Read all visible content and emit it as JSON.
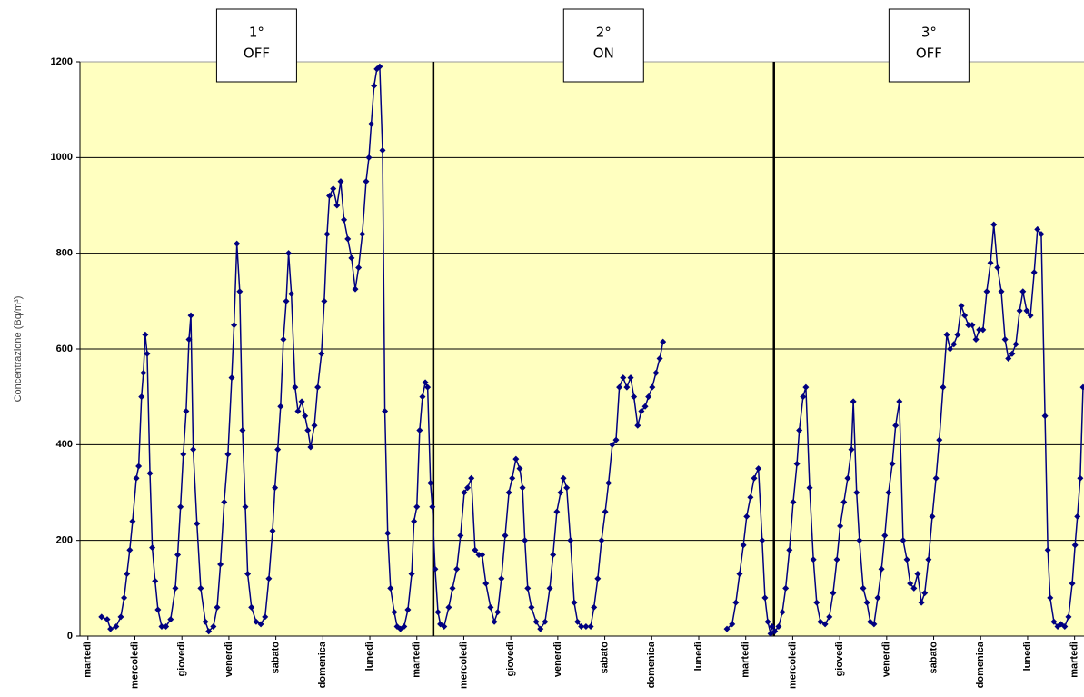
{
  "chart_data": {
    "type": "line",
    "y_label": "Concentrazione (Bq/m³)",
    "color": "#000080",
    "background": "#ffffc0",
    "grid": true,
    "ylim": [
      0,
      1200
    ],
    "yticks": [
      0,
      200,
      400,
      600,
      800,
      1000,
      1200
    ],
    "xlim": [
      -0.17,
      21.2
    ],
    "xticks": [
      {
        "value": 0,
        "label": "martedì"
      },
      {
        "value": 1,
        "label": "mercoledì"
      },
      {
        "value": 2,
        "label": "giovedì"
      },
      {
        "value": 3,
        "label": "venerdì"
      },
      {
        "value": 4,
        "label": "sabato"
      },
      {
        "value": 5,
        "label": "domenica"
      },
      {
        "value": 6,
        "label": "lunedì"
      },
      {
        "value": 7,
        "label": "martedì"
      },
      {
        "value": 8,
        "label": "mercoledì"
      },
      {
        "value": 9,
        "label": "giovedì"
      },
      {
        "value": 10,
        "label": "venerdì"
      },
      {
        "value": 11,
        "label": "sabato"
      },
      {
        "value": 12,
        "label": "domenica"
      },
      {
        "value": 13,
        "label": "lunedì"
      },
      {
        "value": 14,
        "label": "martedì"
      },
      {
        "value": 15,
        "label": "mercoledì"
      },
      {
        "value": 16,
        "label": "giovedì"
      },
      {
        "value": 17,
        "label": "venerdì"
      },
      {
        "value": 18,
        "label": "sabato"
      },
      {
        "value": 19,
        "label": "domenica"
      },
      {
        "value": 20,
        "label": "lunedì"
      },
      {
        "value": 21,
        "label": "martedì"
      }
    ],
    "phase_dividers": [
      7.35,
      14.6
    ],
    "annotations": [
      [
        "1°",
        "OFF"
      ],
      [
        "2°",
        "ON"
      ],
      [
        "3°",
        "OFF"
      ]
    ],
    "x": [
      0.29,
      0.41,
      0.48,
      0.6,
      0.7,
      0.77,
      0.83,
      0.89,
      0.95,
      1.03,
      1.08,
      1.14,
      1.18,
      1.22,
      1.26,
      1.32,
      1.37,
      1.43,
      1.49,
      1.57,
      1.66,
      1.76,
      1.86,
      1.91,
      1.97,
      2.03,
      2.09,
      2.15,
      2.19,
      2.24,
      2.32,
      2.4,
      2.5,
      2.57,
      2.67,
      2.75,
      2.82,
      2.9,
      2.98,
      3.06,
      3.11,
      3.17,
      3.23,
      3.29,
      3.35,
      3.4,
      3.48,
      3.58,
      3.68,
      3.77,
      3.85,
      3.93,
      3.98,
      4.04,
      4.1,
      4.16,
      4.22,
      4.27,
      4.33,
      4.41,
      4.47,
      4.55,
      4.62,
      4.68,
      4.74,
      4.82,
      4.89,
      4.97,
      5.03,
      5.09,
      5.14,
      5.22,
      5.3,
      5.38,
      5.45,
      5.53,
      5.61,
      5.69,
      5.76,
      5.84,
      5.92,
      5.98,
      6.03,
      6.09,
      6.15,
      6.21,
      6.27,
      6.32,
      6.38,
      6.44,
      6.52,
      6.58,
      6.65,
      6.73,
      6.81,
      6.89,
      6.94,
      7.0,
      7.06,
      7.12,
      7.18,
      7.23,
      7.29,
      7.33,
      7.39,
      7.45,
      7.5,
      7.58,
      7.68,
      7.76,
      7.85,
      7.93,
      8.01,
      8.08,
      8.16,
      8.24,
      8.32,
      8.39,
      8.47,
      8.57,
      8.65,
      8.72,
      8.8,
      8.88,
      8.96,
      9.03,
      9.11,
      9.19,
      9.25,
      9.3,
      9.36,
      9.44,
      9.54,
      9.63,
      9.73,
      9.83,
      9.9,
      9.98,
      10.06,
      10.12,
      10.19,
      10.27,
      10.35,
      10.42,
      10.5,
      10.6,
      10.7,
      10.77,
      10.85,
      10.93,
      11.01,
      11.08,
      11.16,
      11.24,
      11.31,
      11.39,
      11.47,
      11.55,
      11.62,
      11.7,
      11.78,
      11.86,
      11.93,
      12.01,
      12.09,
      12.17,
      12.24,
      13.0,
      13.6,
      13.71,
      13.79,
      13.87,
      13.95,
      14.02,
      14.1,
      14.18,
      14.27,
      14.35,
      14.41,
      14.47,
      14.53,
      14.56,
      14.62,
      14.7,
      14.78,
      14.85,
      14.93,
      15.01,
      15.09,
      15.14,
      15.22,
      15.28,
      15.36,
      15.44,
      15.51,
      15.59,
      15.69,
      15.78,
      15.86,
      15.94,
      16.01,
      16.09,
      16.17,
      16.25,
      16.29,
      16.36,
      16.42,
      16.5,
      16.58,
      16.65,
      16.73,
      16.81,
      16.89,
      16.96,
      17.04,
      17.12,
      17.19,
      17.27,
      17.35,
      17.43,
      17.5,
      17.58,
      17.66,
      17.74,
      17.81,
      17.89,
      17.97,
      18.05,
      18.12,
      18.2,
      18.28,
      18.35,
      18.43,
      18.51,
      18.59,
      18.66,
      18.74,
      18.82,
      18.9,
      18.97,
      19.05,
      19.13,
      19.21,
      19.28,
      19.36,
      19.44,
      19.52,
      19.59,
      19.67,
      19.75,
      19.83,
      19.9,
      19.98,
      20.06,
      20.14,
      20.21,
      20.29,
      20.37,
      20.43,
      20.48,
      20.56,
      20.64,
      20.71,
      20.79,
      20.87,
      20.95,
      21.01,
      21.06,
      21.12,
      21.18
    ],
    "values": [
      40,
      35,
      15,
      20,
      40,
      80,
      130,
      180,
      240,
      330,
      355,
      500,
      550,
      630,
      590,
      340,
      185,
      115,
      55,
      20,
      20,
      35,
      100,
      170,
      270,
      380,
      470,
      620,
      670,
      390,
      235,
      100,
      30,
      10,
      20,
      60,
      150,
      280,
      380,
      540,
      650,
      820,
      720,
      430,
      270,
      130,
      60,
      30,
      25,
      40,
      120,
      220,
      310,
      390,
      480,
      620,
      700,
      800,
      715,
      520,
      470,
      490,
      460,
      430,
      395,
      440,
      520,
      590,
      700,
      840,
      920,
      935,
      900,
      950,
      870,
      830,
      790,
      725,
      770,
      840,
      950,
      1000,
      1070,
      1150,
      1185,
      1190,
      1015,
      470,
      215,
      100,
      50,
      20,
      15,
      20,
      55,
      130,
      240,
      270,
      430,
      500,
      530,
      520,
      320,
      270,
      140,
      50,
      25,
      20,
      60,
      100,
      140,
      210,
      300,
      310,
      330,
      180,
      170,
      170,
      110,
      60,
      30,
      50,
      120,
      210,
      300,
      330,
      370,
      350,
      310,
      200,
      100,
      60,
      30,
      15,
      30,
      100,
      170,
      260,
      300,
      330,
      310,
      200,
      70,
      30,
      20,
      20,
      20,
      60,
      120,
      200,
      260,
      320,
      400,
      410,
      520,
      540,
      520,
      540,
      500,
      440,
      470,
      480,
      500,
      520,
      550,
      580,
      615,
      null,
      15,
      25,
      70,
      130,
      190,
      250,
      290,
      330,
      350,
      200,
      80,
      30,
      5,
      20,
      10,
      20,
      50,
      100,
      180,
      280,
      360,
      430,
      500,
      520,
      310,
      160,
      70,
      30,
      25,
      40,
      90,
      160,
      230,
      280,
      330,
      390,
      490,
      300,
      200,
      100,
      70,
      30,
      25,
      80,
      140,
      210,
      300,
      360,
      440,
      490,
      200,
      160,
      110,
      100,
      130,
      70,
      90,
      160,
      250,
      330,
      410,
      520,
      630,
      600,
      610,
      630,
      690,
      670,
      650,
      650,
      620,
      640,
      640,
      720,
      780,
      860,
      770,
      720,
      620,
      580,
      590,
      610,
      680,
      720,
      680,
      670,
      760,
      850,
      840,
      460,
      180,
      80,
      30,
      20,
      25,
      20,
      40,
      110,
      190,
      250,
      330,
      520
    ]
  }
}
